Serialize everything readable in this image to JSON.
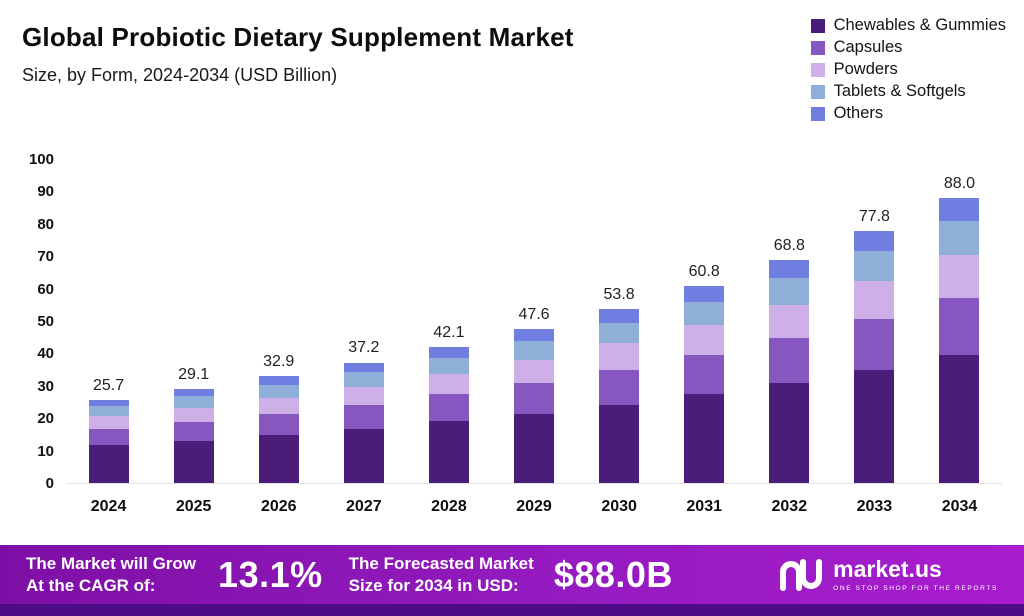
{
  "title": "Global Probiotic Dietary Supplement Market",
  "subtitle": "Size, by Form, 2024-2034 (USD Billion)",
  "chart_data": {
    "type": "bar",
    "stacked": true,
    "title": "Global Probiotic Dietary Supplement Market Size, by Form, 2024-2034 (USD Billion)",
    "xlabel": "",
    "ylabel": "USD Billion",
    "ylim": [
      0,
      100
    ],
    "yticks": [
      0,
      10,
      20,
      30,
      40,
      50,
      60,
      70,
      80,
      90,
      100
    ],
    "grid": false,
    "legend_position": "top-right",
    "categories": [
      "2024",
      "2025",
      "2026",
      "2027",
      "2028",
      "2029",
      "2030",
      "2031",
      "2032",
      "2033",
      "2034"
    ],
    "totals": [
      25.7,
      29.1,
      32.9,
      37.2,
      42.1,
      47.6,
      53.8,
      60.8,
      68.8,
      77.8,
      88.0
    ],
    "series": [
      {
        "name": "Chewables & Gummies",
        "color": "#4A1E78",
        "values": [
          11.6,
          13.1,
          14.8,
          16.7,
          19.0,
          21.4,
          24.2,
          27.4,
          31.0,
          35.0,
          39.6
        ]
      },
      {
        "name": "Capsules",
        "color": "#8657BE",
        "values": [
          5.1,
          5.8,
          6.6,
          7.4,
          8.4,
          9.5,
          10.8,
          12.2,
          13.8,
          15.6,
          17.6
        ]
      },
      {
        "name": "Powders",
        "color": "#CDB0E8",
        "values": [
          3.9,
          4.4,
          4.9,
          5.6,
          6.3,
          7.1,
          8.1,
          9.1,
          10.3,
          11.7,
          13.2
        ]
      },
      {
        "name": "Tablets & Softgels",
        "color": "#8FAFD8",
        "values": [
          3.1,
          3.5,
          3.9,
          4.5,
          5.0,
          5.7,
          6.4,
          7.3,
          8.2,
          9.3,
          10.6
        ]
      },
      {
        "name": "Others",
        "color": "#6F7EE0",
        "values": [
          2.0,
          2.3,
          2.7,
          3.0,
          3.4,
          3.9,
          4.3,
          4.8,
          5.5,
          6.2,
          7.0
        ]
      }
    ]
  },
  "banner": {
    "cagr_label": "The Market will Grow\nAt the CAGR of:",
    "cagr_value": "13.1%",
    "forecast_label": "The Forecasted Market\nSize for 2034 in USD:",
    "forecast_value": "$88.0B",
    "brand": "market.us",
    "brand_tagline": "ONE STOP SHOP FOR THE REPORTS"
  }
}
